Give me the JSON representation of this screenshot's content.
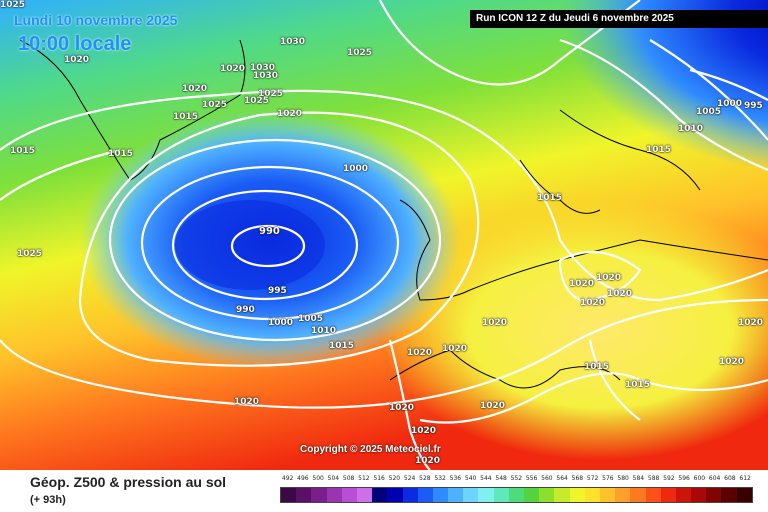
{
  "header": {
    "valid_date": "Lundi 10 novembre 2025",
    "valid_time": "10:00 locale",
    "run_info": "Run ICON 12 Z du Jeudi 6 novembre 2025"
  },
  "copyright": "Copyright © 2025 Meteociel.fr",
  "footer": {
    "title": "Géop. Z500 & pression au sol",
    "lead_time": "(+ 93h)"
  },
  "legend": {
    "values": [
      "492",
      "496",
      "500",
      "504",
      "508",
      "512",
      "516",
      "520",
      "524",
      "528",
      "532",
      "536",
      "540",
      "544",
      "548",
      "552",
      "556",
      "560",
      "564",
      "568",
      "572",
      "576",
      "580",
      "584",
      "588",
      "592",
      "596",
      "600",
      "604",
      "608",
      "612"
    ],
    "colors": [
      "#3b0a45",
      "#5a1066",
      "#7a1e8c",
      "#9b34b2",
      "#b84ed6",
      "#ce6ee8",
      "#00007a",
      "#0000b0",
      "#0a2be0",
      "#1a5cf5",
      "#2f8bff",
      "#4fb0ff",
      "#6fd3ff",
      "#7ff0f0",
      "#5fe8b8",
      "#4cdc7a",
      "#55d23c",
      "#8ae02a",
      "#c4ec2a",
      "#f0f52a",
      "#ffe12a",
      "#ffc22a",
      "#ffa02a",
      "#ff7a1f",
      "#ff5015",
      "#f0280f",
      "#cc140c",
      "#a80808",
      "#800404",
      "#5a0202",
      "#380000"
    ]
  },
  "isobar_labels": [
    {
      "text": "1025"
    },
    {
      "text": "1020"
    },
    {
      "text": "1020"
    },
    {
      "text": "1020"
    },
    {
      "text": "1030"
    },
    {
      "text": "1025"
    },
    {
      "text": "1030"
    },
    {
      "text": "1030"
    },
    {
      "text": "1025"
    },
    {
      "text": "1025"
    },
    {
      "text": "1025"
    },
    {
      "text": "1020"
    },
    {
      "text": "1015"
    },
    {
      "text": "1015"
    },
    {
      "text": "1015"
    },
    {
      "text": "1000"
    },
    {
      "text": "990"
    },
    {
      "text": "995"
    },
    {
      "text": "990"
    },
    {
      "text": "1000"
    },
    {
      "text": "1005"
    },
    {
      "text": "1010"
    },
    {
      "text": "1015"
    },
    {
      "text": "1025"
    },
    {
      "text": "1015"
    },
    {
      "text": "1020"
    },
    {
      "text": "1020"
    },
    {
      "text": "1020"
    },
    {
      "text": "1020"
    },
    {
      "text": "1020"
    },
    {
      "text": "1020"
    },
    {
      "text": "1020"
    },
    {
      "text": "1020"
    },
    {
      "text": "1015"
    },
    {
      "text": "1015"
    },
    {
      "text": "1020"
    },
    {
      "text": "1020"
    },
    {
      "text": "1020"
    },
    {
      "text": "1020"
    },
    {
      "text": "1020"
    },
    {
      "text": "1020"
    },
    {
      "text": "1015"
    },
    {
      "text": "1010"
    },
    {
      "text": "1005"
    },
    {
      "text": "1000"
    },
    {
      "text": "995"
    }
  ]
}
